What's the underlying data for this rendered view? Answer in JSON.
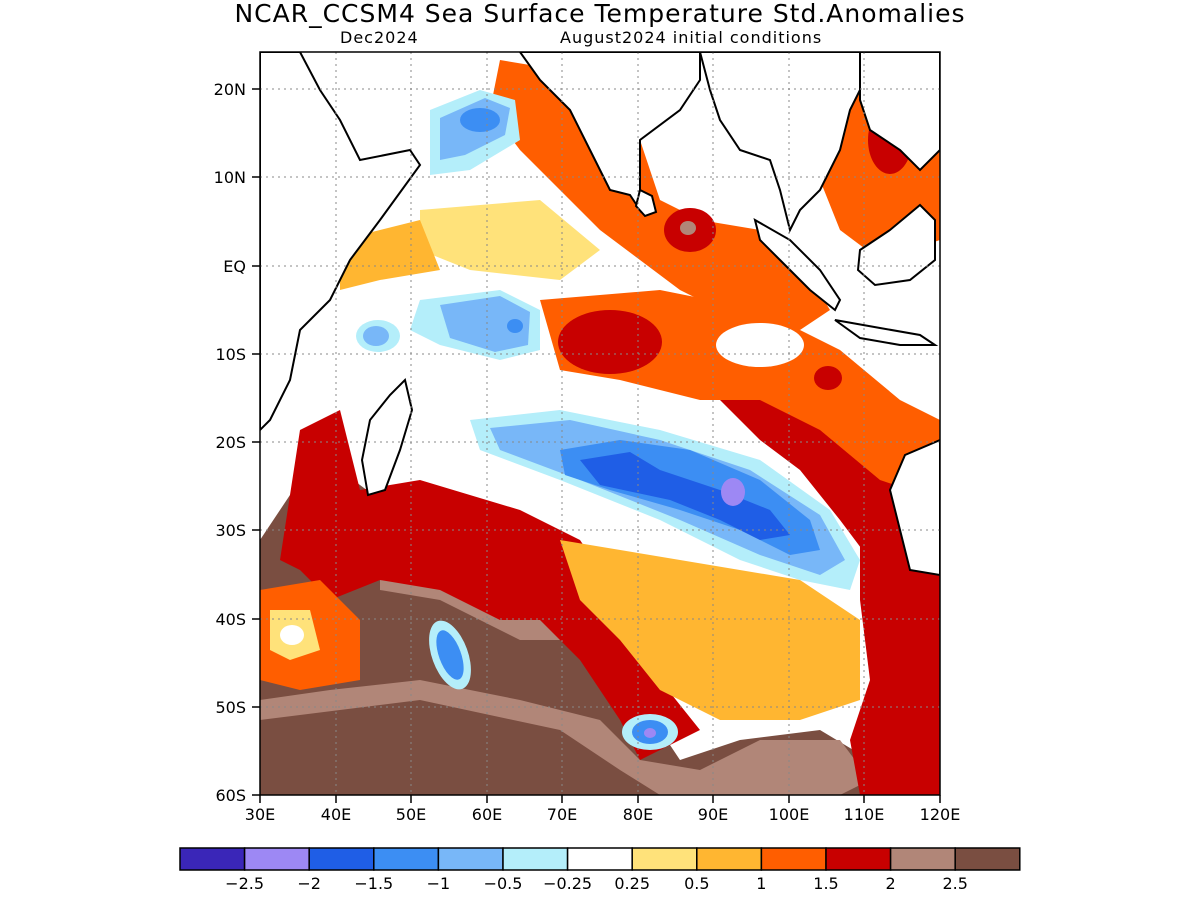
{
  "title": "NCAR_CCSM4 Sea Surface Temperature Std.Anomalies",
  "valid_month": "Dec2024",
  "initial_conditions": "August2024 initial conditions",
  "map": {
    "lon_labels": [
      "30E",
      "40E",
      "50E",
      "60E",
      "70E",
      "80E",
      "90E",
      "100E",
      "110E",
      "120E"
    ],
    "lat_labels": [
      "20N",
      "10N",
      "EQ",
      "10S",
      "20S",
      "30S",
      "40S",
      "50S",
      "60S"
    ],
    "gridlines": "dotted"
  },
  "colorbar": {
    "colors": [
      "#3a26b8",
      "#9d88f4",
      "#1f5ee6",
      "#3c8ef3",
      "#78b7f8",
      "#b4eefa",
      "#ffffff",
      "#ffe27a",
      "#ffb631",
      "#ff5e00",
      "#c80000",
      "#b18678",
      "#7a4e41"
    ],
    "labels": [
      "−2.5",
      "−2",
      "−1.5",
      "−1",
      "−0.5",
      "−0.25",
      "0.25",
      "0.5",
      "1",
      "1.5",
      "2",
      "2.5"
    ]
  }
}
